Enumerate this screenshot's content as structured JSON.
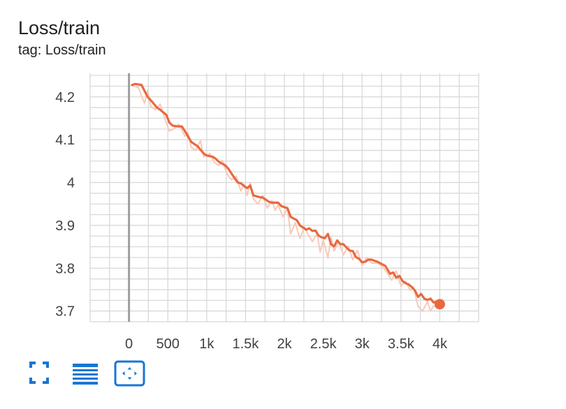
{
  "card": {
    "title": "Loss/train",
    "tag": "tag: Loss/train"
  },
  "colors": {
    "smoothed": "#e8693f",
    "raw": "#f6c9b8",
    "grid": "#d6d6d6",
    "axis_zero": "#9e9e9e",
    "tool_icon": "#1976d2"
  },
  "toolbar": {
    "icons": [
      "fullscreen-icon",
      "toggle-y-log-icon",
      "fit-domain-icon"
    ]
  },
  "chart_data": {
    "type": "line",
    "title": "Loss/train",
    "xlabel": "",
    "ylabel": "",
    "xlim": [
      -500,
      4500
    ],
    "ylim": [
      3.675,
      4.255
    ],
    "x_ticks": [
      0,
      500,
      1000,
      1500,
      2000,
      2500,
      3000,
      3500,
      4000
    ],
    "x_tick_labels": [
      "0",
      "500",
      "1k",
      "1.5k",
      "2k",
      "2.5k",
      "3k",
      "3.5k",
      "4k"
    ],
    "y_ticks": [
      3.7,
      3.8,
      3.9,
      4.0,
      4.1,
      4.2
    ],
    "y_tick_labels": [
      "3.7",
      "3.8",
      "3.9",
      "4",
      "4.1",
      "4.2"
    ],
    "grid": true,
    "series": [
      {
        "role": "smoothed",
        "x": [
          40,
          80,
          160,
          240,
          300,
          360,
          400,
          480,
          520,
          560,
          620,
          680,
          720,
          800,
          840,
          880,
          960,
          1000,
          1080,
          1120,
          1160,
          1240,
          1280,
          1360,
          1400,
          1440,
          1480,
          1520,
          1560,
          1600,
          1680,
          1720,
          1800,
          1840,
          1920,
          1960,
          2040,
          2080,
          2120,
          2160,
          2200,
          2280,
          2320,
          2360,
          2400,
          2440,
          2480,
          2520,
          2560,
          2600,
          2640,
          2680,
          2720,
          2760,
          2800,
          2840,
          2880,
          2920,
          2960,
          3000,
          3040,
          3080,
          3120,
          3200,
          3240,
          3300,
          3360,
          3400,
          3440,
          3480,
          3520,
          3560,
          3600,
          3640,
          3680,
          3720,
          3760,
          3800,
          3840,
          3880,
          3920,
          3960,
          4000
        ],
        "y": [
          4.228,
          4.23,
          4.228,
          4.2,
          4.188,
          4.175,
          4.17,
          4.158,
          4.14,
          4.133,
          4.131,
          4.131,
          4.12,
          4.095,
          4.09,
          4.085,
          4.068,
          4.063,
          4.06,
          4.055,
          4.048,
          4.04,
          4.032,
          4.01,
          4.0,
          3.998,
          3.992,
          3.987,
          3.993,
          3.97,
          3.966,
          3.965,
          3.955,
          3.953,
          3.953,
          3.945,
          3.94,
          3.92,
          3.916,
          3.912,
          3.9,
          3.89,
          3.893,
          3.887,
          3.888,
          3.876,
          3.872,
          3.87,
          3.88,
          3.856,
          3.851,
          3.865,
          3.856,
          3.856,
          3.848,
          3.841,
          3.84,
          3.826,
          3.822,
          3.814,
          3.815,
          3.82,
          3.82,
          3.815,
          3.811,
          3.805,
          3.787,
          3.79,
          3.778,
          3.782,
          3.77,
          3.765,
          3.762,
          3.756,
          3.748,
          3.733,
          3.74,
          3.729,
          3.726,
          3.729,
          3.72,
          3.722,
          3.716
        ]
      },
      {
        "role": "raw",
        "x": [
          40,
          120,
          200,
          240,
          280,
          340,
          400,
          460,
          520,
          580,
          640,
          720,
          760,
          800,
          860,
          920,
          960,
          1040,
          1100,
          1160,
          1200,
          1260,
          1320,
          1380,
          1440,
          1480,
          1520,
          1560,
          1600,
          1660,
          1720,
          1780,
          1840,
          1880,
          1920,
          1980,
          2040,
          2080,
          2140,
          2200,
          2260,
          2300,
          2360,
          2420,
          2460,
          2500,
          2560,
          2600,
          2640,
          2700,
          2760,
          2820,
          2880,
          2940,
          3000,
          3060,
          3120,
          3200,
          3260,
          3320,
          3380,
          3440,
          3500,
          3560,
          3620,
          3660,
          3720,
          3780,
          3840,
          3880,
          3920,
          3980
        ],
        "y": [
          4.226,
          4.222,
          4.185,
          4.215,
          4.178,
          4.17,
          4.183,
          4.15,
          4.12,
          4.126,
          4.136,
          4.108,
          4.116,
          4.082,
          4.075,
          4.098,
          4.06,
          4.068,
          4.046,
          4.04,
          4.052,
          4.02,
          4.006,
          4.015,
          3.98,
          3.996,
          3.97,
          4.0,
          3.962,
          3.95,
          3.97,
          3.94,
          3.958,
          3.935,
          3.948,
          3.92,
          3.94,
          3.88,
          3.906,
          3.87,
          3.896,
          3.88,
          3.862,
          3.88,
          3.838,
          3.866,
          3.824,
          3.872,
          3.84,
          3.862,
          3.831,
          3.852,
          3.82,
          3.842,
          3.806,
          3.825,
          3.812,
          3.812,
          3.804,
          3.79,
          3.772,
          3.794,
          3.758,
          3.77,
          3.748,
          3.756,
          3.711,
          3.7,
          3.722,
          3.7,
          3.712,
          3.708
        ]
      }
    ],
    "last_point": {
      "x": 4000,
      "y": 3.716
    }
  }
}
